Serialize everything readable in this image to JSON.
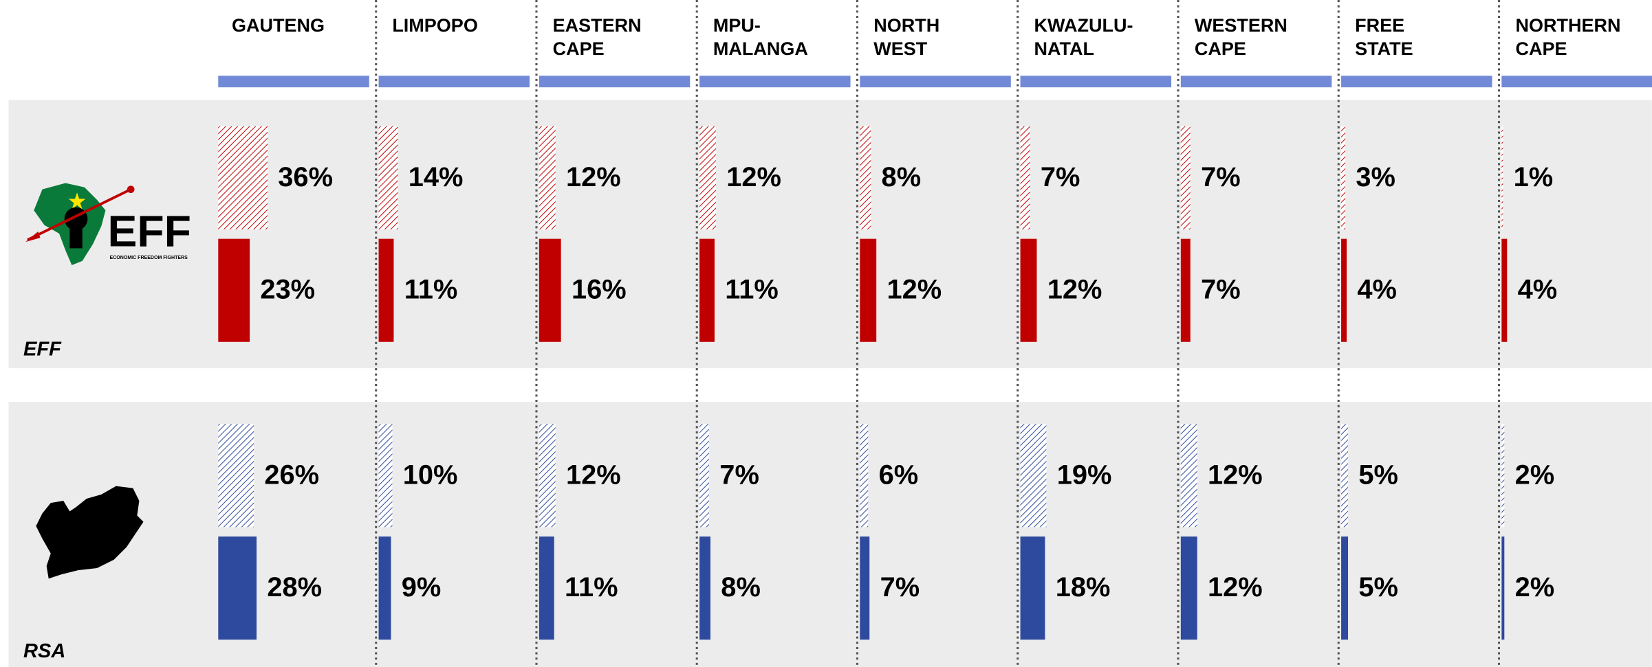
{
  "chart_data": {
    "type": "bar",
    "categories": [
      "GAUTENG",
      "LIMPOPO",
      "EASTERN CAPE",
      "MPU-MALANGA",
      "NORTH WEST",
      "KWAZULU-NATAL",
      "WESTERN CAPE",
      "FREE STATE",
      "NORTHERN CAPE"
    ],
    "header_color": "#7189d6",
    "groups": [
      {
        "label": "EFF",
        "logo": {
          "mark": "EFF",
          "caption": "ECONOMIC FREEDOM FIGHTERS"
        },
        "series": [
          {
            "color": "#c00000",
            "hatched": true,
            "values": [
              36,
              14,
              12,
              12,
              8,
              7,
              7,
              3,
              1
            ],
            "value_labels": [
              "36%",
              "14%",
              "12%",
              "12%",
              "8%",
              "7%",
              "7%",
              "3%",
              "1%"
            ]
          },
          {
            "color": "#c00000",
            "hatched": false,
            "values": [
              23,
              11,
              16,
              11,
              12,
              12,
              7,
              4,
              4
            ],
            "value_labels": [
              "23%",
              "11%",
              "16%",
              "11%",
              "12%",
              "12%",
              "7%",
              "4%",
              "4%"
            ]
          }
        ]
      },
      {
        "label": "RSA",
        "series": [
          {
            "color": "#2e4a9e",
            "hatched": true,
            "values": [
              26,
              10,
              12,
              7,
              6,
              19,
              12,
              5,
              2
            ],
            "value_labels": [
              "26%",
              "10%",
              "12%",
              "7%",
              "6%",
              "19%",
              "12%",
              "5%",
              "2%"
            ]
          },
          {
            "color": "#2e4a9e",
            "hatched": false,
            "values": [
              28,
              9,
              11,
              8,
              7,
              18,
              12,
              5,
              2
            ],
            "value_labels": [
              "28%",
              "9%",
              "11%",
              "8%",
              "7%",
              "18%",
              "12%",
              "5%",
              "2%"
            ]
          }
        ]
      }
    ]
  }
}
